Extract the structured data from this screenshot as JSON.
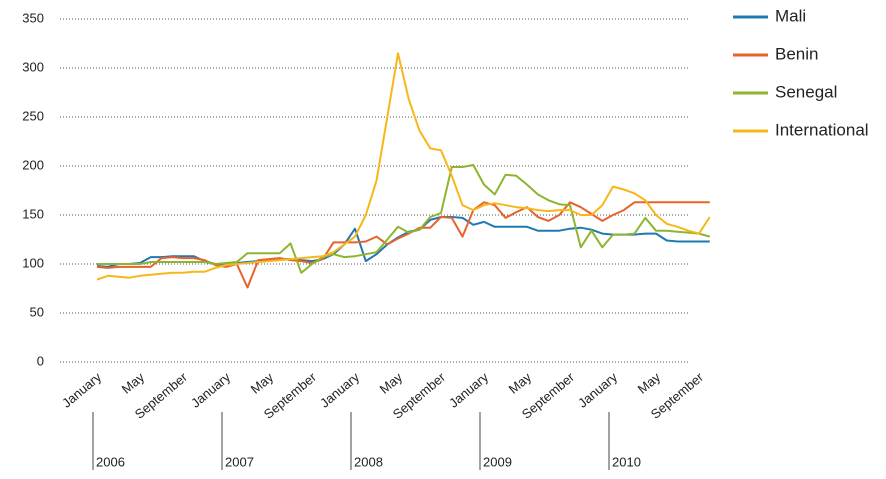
{
  "chart_data": {
    "type": "line",
    "categories": [
      "January",
      null,
      null,
      null,
      "May",
      null,
      null,
      null,
      "September",
      null,
      null,
      null,
      "January",
      null,
      null,
      null,
      "May",
      null,
      null,
      null,
      "September",
      null,
      null,
      null,
      "January",
      null,
      null,
      null,
      "May",
      null,
      null,
      null,
      "September",
      null,
      null,
      null,
      "January",
      null,
      null,
      null,
      "May",
      null,
      null,
      null,
      "September",
      null,
      null,
      null,
      "January",
      null,
      null,
      null,
      "May",
      null,
      null,
      null,
      "September",
      null
    ],
    "year_labels": [
      "2006",
      "2007",
      "2008",
      "2009",
      "2010"
    ],
    "ylim": [
      0,
      350
    ],
    "yticks": [
      0,
      50,
      100,
      150,
      200,
      250,
      300,
      350
    ],
    "grid": true,
    "legend": "top-right",
    "series": [
      {
        "name": "Mali",
        "color": "#1f78b4",
        "values": [
          98,
          97,
          100,
          100,
          101,
          107,
          107,
          108,
          108,
          108,
          103,
          100,
          100,
          101,
          102,
          103,
          104,
          105,
          105,
          104,
          103,
          105,
          110,
          120,
          136,
          103,
          110,
          120,
          127,
          133,
          135,
          145,
          148,
          148,
          147,
          140,
          143,
          138,
          138,
          138,
          138,
          134,
          134,
          134,
          136,
          137,
          135,
          131,
          130,
          130,
          130,
          131,
          131,
          124,
          123,
          123,
          123,
          123
        ]
      },
      {
        "name": "Benin",
        "color": "#e8622c",
        "values": [
          97,
          96,
          97,
          97,
          97,
          97,
          106,
          107,
          106,
          106,
          104,
          99,
          97,
          100,
          76,
          104,
          105,
          106,
          104,
          103,
          101,
          105,
          122,
          122,
          122,
          123,
          128,
          120,
          126,
          131,
          137,
          137,
          148,
          147,
          128,
          155,
          163,
          160,
          147,
          153,
          158,
          148,
          144,
          150,
          163,
          158,
          151,
          144,
          150,
          155,
          163,
          163,
          163,
          163,
          163,
          163,
          163,
          163
        ]
      },
      {
        "name": "Senegal",
        "color": "#8db530",
        "values": [
          100,
          100,
          100,
          100,
          100,
          102,
          102,
          102,
          102,
          102,
          102,
          100,
          101,
          102,
          111,
          111,
          111,
          111,
          121,
          91,
          100,
          107,
          110,
          107,
          108,
          110,
          112,
          125,
          138,
          132,
          135,
          148,
          152,
          199,
          199,
          201,
          181,
          171,
          191,
          190,
          181,
          171,
          165,
          161,
          160,
          117,
          134,
          117,
          130,
          130,
          131,
          147,
          134,
          134,
          133,
          132,
          131,
          128
        ]
      },
      {
        "name": "International",
        "color": "#f7b718",
        "values": [
          84,
          88,
          87,
          86,
          88,
          89,
          90,
          91,
          91,
          92,
          92,
          96,
          99,
          100,
          101,
          102,
          103,
          104,
          105,
          106,
          107,
          108,
          112,
          120,
          128,
          150,
          185,
          250,
          315,
          268,
          236,
          218,
          216,
          190,
          160,
          155,
          160,
          162,
          160,
          158,
          157,
          155,
          154,
          155,
          155,
          150,
          150,
          160,
          179,
          176,
          172,
          165,
          150,
          141,
          138,
          134,
          131,
          148
        ]
      }
    ]
  }
}
